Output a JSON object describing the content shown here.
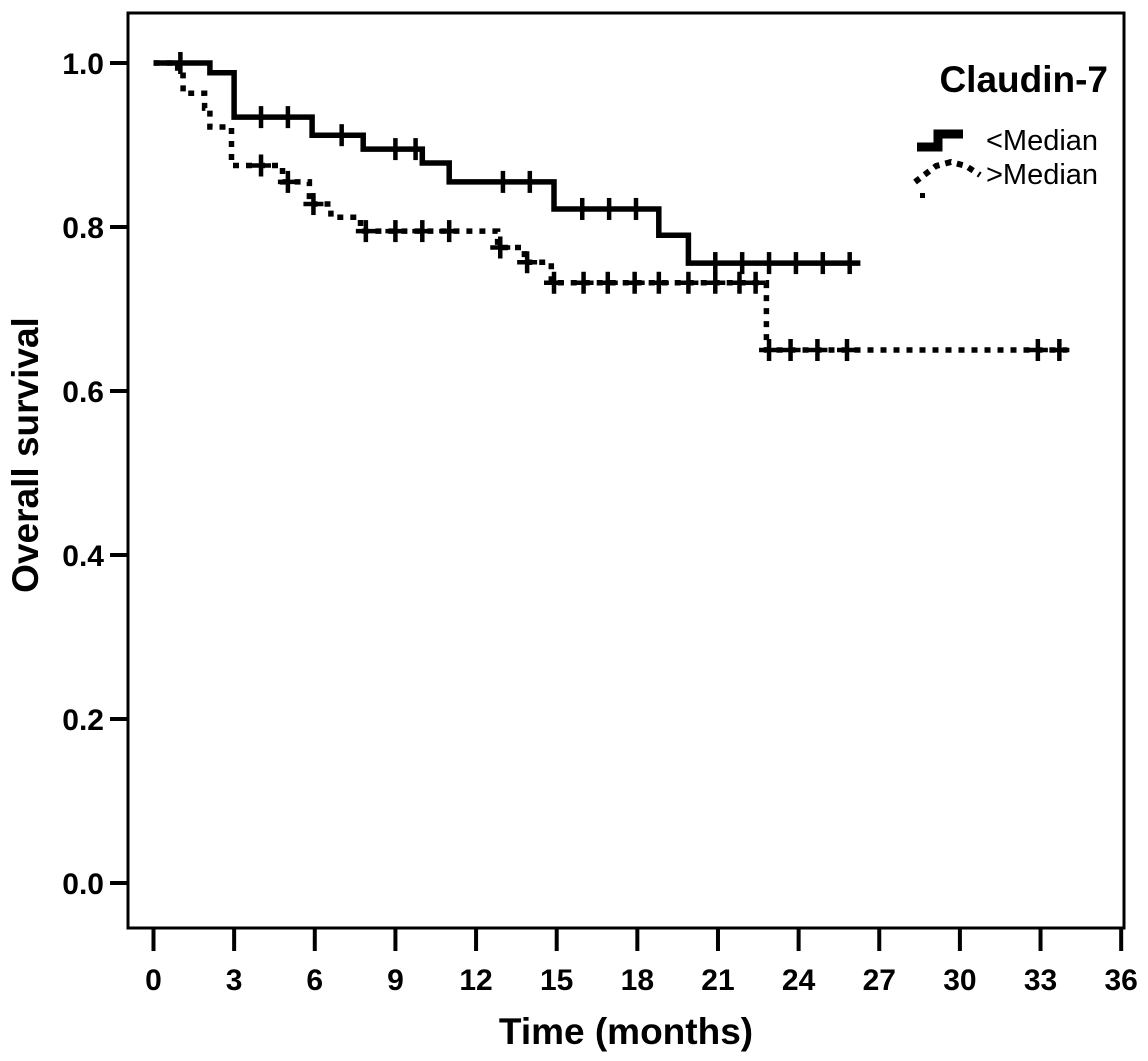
{
  "chart_data": {
    "type": "line",
    "variant": "kaplan-meier-step",
    "title": "Claudin-7",
    "xlabel": "Time (months)",
    "ylabel": "Overall survival",
    "grid": false,
    "background_color": "#ffffff",
    "line_color": "#000000",
    "legend_position": "top-right-inside",
    "x_axis": {
      "label": "Time (months)",
      "range": [
        0,
        36
      ],
      "ticks": [
        0,
        3,
        6,
        9,
        12,
        15,
        18,
        21,
        24,
        27,
        30,
        33,
        36
      ]
    },
    "y_axis": {
      "label": "Overall survival",
      "range": [
        0.0,
        1.0
      ],
      "ticks": [
        {
          "label": "1.0",
          "value": 1.0
        },
        {
          "label": "0.8",
          "value": 0.8
        },
        {
          "label": "0.6",
          "value": 0.6
        },
        {
          "label": "0.4",
          "value": 0.4
        },
        {
          "label": "0.2",
          "value": 0.2
        },
        {
          "label": "0.0",
          "value": 0.0
        }
      ]
    },
    "legend": {
      "title": "Claudin-7",
      "entries": [
        {
          "label": "<Median",
          "line": "solid"
        },
        {
          "label": ">Median",
          "line": "dotted"
        }
      ]
    },
    "series": [
      {
        "name": "<Median",
        "line": "solid",
        "color": "#000000",
        "steps": [
          [
            0,
            1.0
          ],
          [
            2.1,
            0.988
          ],
          [
            3.0,
            0.934
          ],
          [
            5.9,
            0.912
          ],
          [
            7.8,
            0.895
          ],
          [
            10.0,
            0.878
          ],
          [
            11.0,
            0.855
          ],
          [
            14.9,
            0.822
          ],
          [
            18.8,
            0.79
          ],
          [
            19.9,
            0.756
          ]
        ],
        "end_time": 26.3,
        "censors": [
          [
            1.0,
            1.0
          ],
          [
            4.0,
            0.934
          ],
          [
            5.0,
            0.934
          ],
          [
            7.0,
            0.912
          ],
          [
            9.0,
            0.895
          ],
          [
            9.75,
            0.895
          ],
          [
            13.0,
            0.855
          ],
          [
            14.0,
            0.855
          ],
          [
            15.95,
            0.822
          ],
          [
            16.95,
            0.822
          ],
          [
            17.95,
            0.822
          ],
          [
            20.9,
            0.756
          ],
          [
            21.9,
            0.756
          ],
          [
            22.9,
            0.756
          ],
          [
            23.9,
            0.756
          ],
          [
            24.9,
            0.756
          ],
          [
            25.9,
            0.756
          ]
        ]
      },
      {
        "name": ">Median",
        "line": "dotted",
        "color": "#000000",
        "steps": [
          [
            0,
            1.0
          ],
          [
            0.9,
            0.985
          ],
          [
            1.1,
            0.963
          ],
          [
            1.9,
            0.945
          ],
          [
            2.1,
            0.922
          ],
          [
            2.9,
            0.875
          ],
          [
            4.8,
            0.855
          ],
          [
            5.8,
            0.828
          ],
          [
            6.6,
            0.812
          ],
          [
            7.7,
            0.795
          ],
          [
            12.8,
            0.775
          ],
          [
            13.8,
            0.757
          ],
          [
            14.8,
            0.732
          ],
          [
            22.8,
            0.65
          ]
        ],
        "end_time": 34.0,
        "censors": [
          [
            4.0,
            0.875
          ],
          [
            5.0,
            0.855
          ],
          [
            5.95,
            0.828
          ],
          [
            7.9,
            0.795
          ],
          [
            9.0,
            0.795
          ],
          [
            10.0,
            0.795
          ],
          [
            11.0,
            0.795
          ],
          [
            12.9,
            0.775
          ],
          [
            13.9,
            0.757
          ],
          [
            14.9,
            0.732
          ],
          [
            16.0,
            0.732
          ],
          [
            16.9,
            0.732
          ],
          [
            17.9,
            0.732
          ],
          [
            18.8,
            0.732
          ],
          [
            19.9,
            0.732
          ],
          [
            20.9,
            0.732
          ],
          [
            21.8,
            0.732
          ],
          [
            22.4,
            0.732
          ],
          [
            22.9,
            0.65
          ],
          [
            23.7,
            0.65
          ],
          [
            24.7,
            0.65
          ],
          [
            25.8,
            0.65
          ],
          [
            32.9,
            0.65
          ],
          [
            33.7,
            0.65
          ]
        ]
      }
    ]
  }
}
